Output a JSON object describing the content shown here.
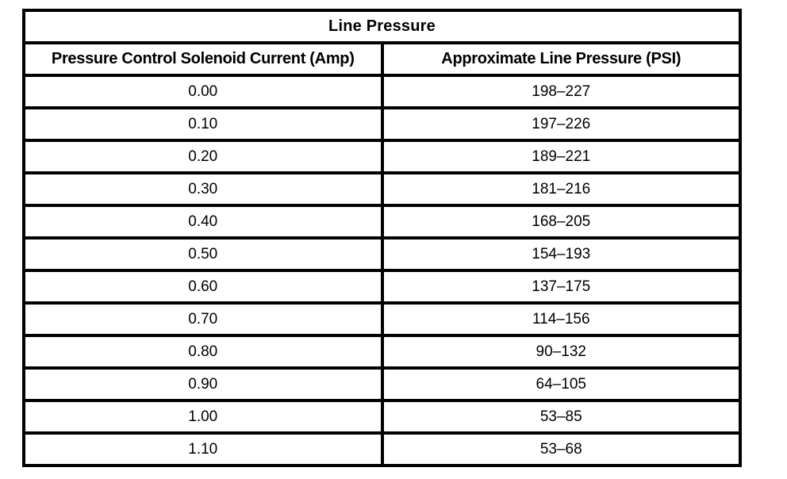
{
  "table": {
    "title": "Line Pressure",
    "columns": [
      "Pressure Control Solenoid Current (Amp)",
      "Approximate Line Pressure (PSI)"
    ],
    "rows": [
      [
        "0.00",
        "198–227"
      ],
      [
        "0.10",
        "197–226"
      ],
      [
        "0.20",
        "189–221"
      ],
      [
        "0.30",
        "181–216"
      ],
      [
        "0.40",
        "168–205"
      ],
      [
        "0.50",
        "154–193"
      ],
      [
        "0.60",
        "137–175"
      ],
      [
        "0.70",
        "114–156"
      ],
      [
        "0.80",
        "90–132"
      ],
      [
        "0.90",
        "64–105"
      ],
      [
        "1.00",
        "53–85"
      ],
      [
        "1.10",
        "53–68"
      ]
    ]
  },
  "colors": {
    "border": "#000000",
    "background": "#ffffff",
    "text": "#000000"
  }
}
